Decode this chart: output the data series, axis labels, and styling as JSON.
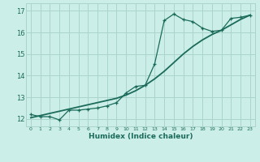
{
  "xlabel": "Humidex (Indice chaleur)",
  "bg_color": "#cceee8",
  "grid_color": "#aad4cc",
  "line_color": "#1a6b5a",
  "xlim": [
    -0.5,
    23.5
  ],
  "ylim": [
    11.65,
    17.35
  ],
  "xticks": [
    0,
    1,
    2,
    3,
    4,
    5,
    6,
    7,
    8,
    9,
    10,
    11,
    12,
    13,
    14,
    15,
    16,
    17,
    18,
    19,
    20,
    21,
    22,
    23
  ],
  "yticks": [
    12,
    13,
    14,
    15,
    16,
    17
  ],
  "x_noisy": [
    0,
    1,
    2,
    3,
    4,
    5,
    6,
    7,
    8,
    9,
    10,
    11,
    12,
    13,
    14,
    15,
    16,
    17,
    18,
    19,
    20,
    21,
    22,
    23
  ],
  "y_noisy": [
    12.2,
    12.1,
    12.1,
    11.95,
    12.4,
    12.4,
    12.45,
    12.5,
    12.6,
    12.75,
    13.2,
    13.5,
    13.55,
    14.55,
    16.55,
    16.85,
    16.6,
    16.5,
    16.2,
    16.05,
    16.1,
    16.65,
    16.7,
    16.8
  ],
  "x_smooth": [
    0,
    1,
    2,
    3,
    4,
    5,
    6,
    7,
    8,
    9,
    10,
    11,
    12,
    13,
    14,
    15,
    16,
    17,
    18,
    19,
    20,
    21,
    22,
    23
  ],
  "y_smooth": [
    12.05,
    12.15,
    12.25,
    12.35,
    12.45,
    12.55,
    12.65,
    12.75,
    12.85,
    12.95,
    13.1,
    13.3,
    13.55,
    13.85,
    14.2,
    14.6,
    15.0,
    15.35,
    15.65,
    15.9,
    16.1,
    16.35,
    16.6,
    16.8
  ]
}
